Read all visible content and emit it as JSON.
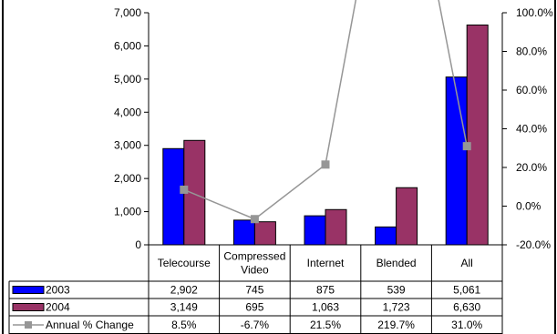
{
  "colors": {
    "series_2003": "#0000ff",
    "series_2004": "#993366",
    "series_change": "#969696",
    "axis": "#000000"
  },
  "chart_data": {
    "type": "bar",
    "categories": [
      "Telecourse",
      "Compressed Video",
      "Internet",
      "Blended",
      "All"
    ],
    "category_lines": [
      [
        "Telecourse"
      ],
      [
        "Compressed",
        "Video"
      ],
      [
        "Internet"
      ],
      [
        "Blended"
      ],
      [
        "All"
      ]
    ],
    "series": [
      {
        "name": "2003",
        "type": "bar",
        "values": [
          2902,
          745,
          875,
          539,
          5061
        ],
        "labels": [
          "2,902",
          "745",
          "875",
          "539",
          "5,061"
        ]
      },
      {
        "name": "2004",
        "type": "bar",
        "values": [
          3149,
          695,
          1063,
          1723,
          6630
        ],
        "labels": [
          "3,149",
          "695",
          "1,063",
          "1,723",
          "6,630"
        ]
      },
      {
        "name": "Annual % Change",
        "type": "line",
        "axis": "right",
        "values": [
          8.5,
          -6.7,
          21.5,
          219.7,
          31.0
        ],
        "labels": [
          "8.5%",
          "-6.7%",
          "21.5%",
          "219.7%",
          "31.0%"
        ]
      }
    ],
    "y_left": {
      "ylim": [
        0,
        7000
      ],
      "ticks": [
        0,
        1000,
        2000,
        3000,
        4000,
        5000,
        6000,
        7000
      ],
      "tick_labels": [
        "0",
        "1,000",
        "2,000",
        "3,000",
        "4,000",
        "5,000",
        "6,000",
        "7,000"
      ]
    },
    "y_right": {
      "ylim": [
        -20,
        100
      ],
      "ticks": [
        -20,
        0,
        20,
        40,
        60,
        80,
        100
      ],
      "tick_labels": [
        "-20.0%",
        "0.0%",
        "20.0%",
        "40.0%",
        "60.0%",
        "80.0%",
        "100.0%"
      ]
    },
    "data_table": true,
    "grid": false,
    "legend": "data-table"
  }
}
